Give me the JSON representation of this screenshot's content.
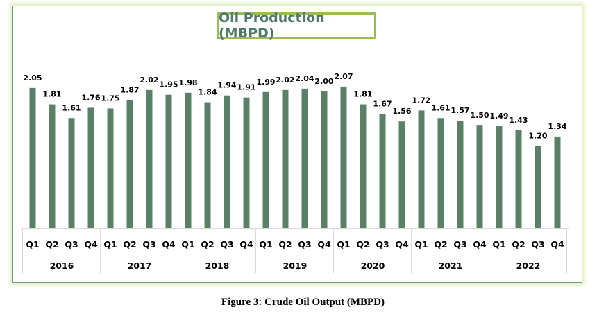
{
  "chart_data": {
    "type": "bar",
    "title": "Oil Production (MBPD)",
    "caption": "Figure 3: Crude Oil Output (MBPD)",
    "xlabel": "",
    "ylabel": "",
    "ylim": [
      0,
      2.1
    ],
    "grid": false,
    "color": "#5b8068",
    "groups": [
      "2016",
      "2017",
      "2018",
      "2019",
      "2020",
      "2021",
      "2022"
    ],
    "quarters": [
      "Q1",
      "Q2",
      "Q3",
      "Q4"
    ],
    "values": [
      2.05,
      1.81,
      1.61,
      1.76,
      1.75,
      1.87,
      2.02,
      1.95,
      1.98,
      1.84,
      1.94,
      1.91,
      1.99,
      2.02,
      2.04,
      2.0,
      2.07,
      1.81,
      1.67,
      1.56,
      1.72,
      1.61,
      1.57,
      1.5,
      1.49,
      1.43,
      1.2,
      1.34
    ],
    "labels": [
      "2.05",
      "1.81",
      "1.61",
      "1.76",
      "1.75",
      "1.87",
      "2.02",
      "1.95",
      "1.98",
      "1.84",
      "1.94",
      "1.91",
      "1.99",
      "2.02",
      "2.04",
      "2.00",
      "2.07",
      "1.81",
      "1.67",
      "1.56",
      "1.72",
      "1.61",
      "1.57",
      "1.50",
      "1.49",
      "1.43",
      "1.20",
      "1.34"
    ]
  }
}
